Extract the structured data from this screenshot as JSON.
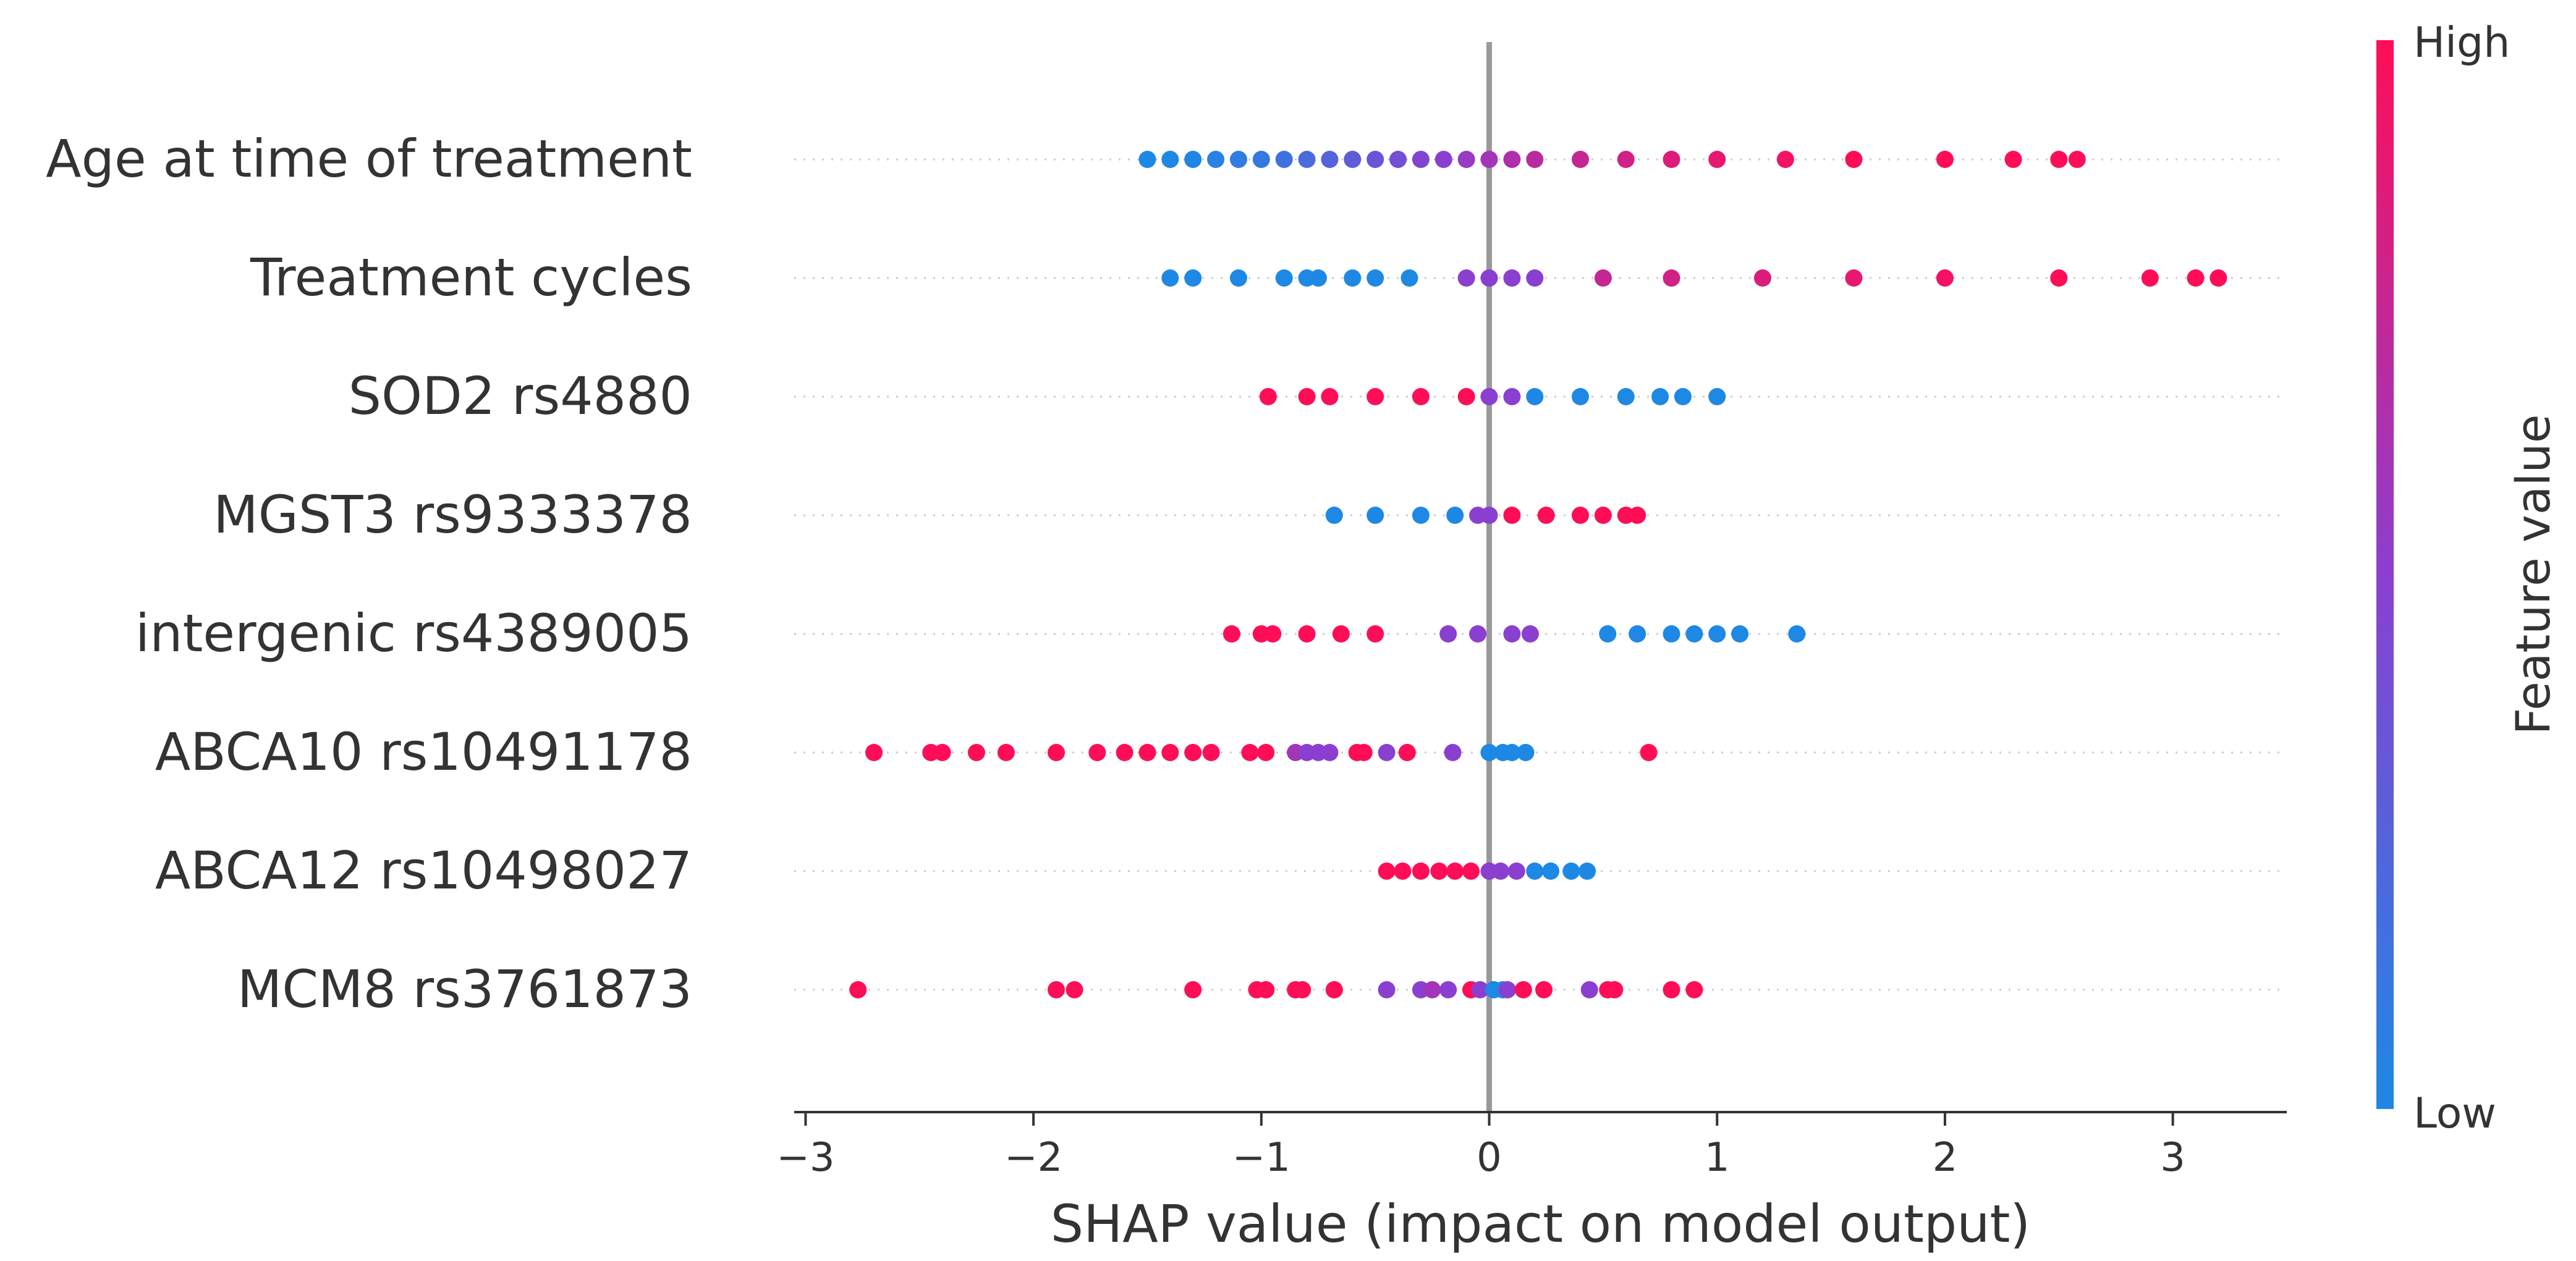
{
  "chart_data": {
    "type": "scatter",
    "subtype": "shap-beeswarm",
    "title": "",
    "xlabel": "SHAP value (impact on model output)",
    "ylabel": "",
    "xlim": [
      -3.05,
      3.5
    ],
    "x_ticks": [
      -3,
      -2,
      -1,
      0,
      1,
      2,
      3
    ],
    "x_tick_labels": [
      "−3",
      "−2",
      "−1",
      "0",
      "1",
      "2",
      "3"
    ],
    "colorbar": {
      "title": "Feature value",
      "high_label": "High",
      "low_label": "Low",
      "low_color": "#1e88e5",
      "mid_color": "#8b3fd0",
      "high_color": "#ff0d57"
    },
    "zero_line_color": "#999999",
    "features": [
      {
        "name": "Age at time of treatment",
        "points": [
          {
            "x": -1.5,
            "v": 0.0
          },
          {
            "x": -1.4,
            "v": 0.0
          },
          {
            "x": -1.3,
            "v": 0.02
          },
          {
            "x": -1.2,
            "v": 0.05
          },
          {
            "x": -1.1,
            "v": 0.08
          },
          {
            "x": -1.0,
            "v": 0.1
          },
          {
            "x": -0.9,
            "v": 0.15
          },
          {
            "x": -0.8,
            "v": 0.2
          },
          {
            "x": -0.7,
            "v": 0.25
          },
          {
            "x": -0.6,
            "v": 0.3
          },
          {
            "x": -0.5,
            "v": 0.35
          },
          {
            "x": -0.4,
            "v": 0.4
          },
          {
            "x": -0.3,
            "v": 0.45
          },
          {
            "x": -0.2,
            "v": 0.5
          },
          {
            "x": -0.1,
            "v": 0.55
          },
          {
            "x": 0.0,
            "v": 0.6
          },
          {
            "x": 0.1,
            "v": 0.65
          },
          {
            "x": 0.2,
            "v": 0.7
          },
          {
            "x": 0.4,
            "v": 0.75
          },
          {
            "x": 0.6,
            "v": 0.8
          },
          {
            "x": 0.8,
            "v": 0.85
          },
          {
            "x": 1.0,
            "v": 0.9
          },
          {
            "x": 1.3,
            "v": 0.95
          },
          {
            "x": 1.6,
            "v": 1.0
          },
          {
            "x": 2.0,
            "v": 1.0
          },
          {
            "x": 2.3,
            "v": 1.0
          },
          {
            "x": 2.5,
            "v": 1.0
          },
          {
            "x": 2.58,
            "v": 1.0
          }
        ]
      },
      {
        "name": "Treatment cycles",
        "points": [
          {
            "x": -1.4,
            "v": 0.0
          },
          {
            "x": -1.3,
            "v": 0.0
          },
          {
            "x": -1.1,
            "v": 0.0
          },
          {
            "x": -0.9,
            "v": 0.0
          },
          {
            "x": -0.8,
            "v": 0.0
          },
          {
            "x": -0.75,
            "v": 0.0
          },
          {
            "x": -0.6,
            "v": 0.0
          },
          {
            "x": -0.5,
            "v": 0.0
          },
          {
            "x": -0.35,
            "v": 0.0
          },
          {
            "x": -0.1,
            "v": 0.5
          },
          {
            "x": 0.0,
            "v": 0.5
          },
          {
            "x": 0.1,
            "v": 0.5
          },
          {
            "x": 0.2,
            "v": 0.5
          },
          {
            "x": 0.5,
            "v": 0.75
          },
          {
            "x": 0.8,
            "v": 0.8
          },
          {
            "x": 1.2,
            "v": 0.85
          },
          {
            "x": 1.6,
            "v": 0.9
          },
          {
            "x": 2.0,
            "v": 0.95
          },
          {
            "x": 2.5,
            "v": 1.0
          },
          {
            "x": 2.9,
            "v": 1.0
          },
          {
            "x": 3.1,
            "v": 1.0
          },
          {
            "x": 3.2,
            "v": 1.0
          }
        ]
      },
      {
        "name": "SOD2 rs4880",
        "points": [
          {
            "x": -0.97,
            "v": 1.0
          },
          {
            "x": -0.8,
            "v": 1.0
          },
          {
            "x": -0.7,
            "v": 1.0
          },
          {
            "x": -0.5,
            "v": 1.0
          },
          {
            "x": -0.3,
            "v": 1.0
          },
          {
            "x": -0.1,
            "v": 1.0
          },
          {
            "x": 0.0,
            "v": 0.5
          },
          {
            "x": 0.1,
            "v": 0.5
          },
          {
            "x": 0.2,
            "v": 0.0
          },
          {
            "x": 0.4,
            "v": 0.0
          },
          {
            "x": 0.6,
            "v": 0.0
          },
          {
            "x": 0.75,
            "v": 0.0
          },
          {
            "x": 0.85,
            "v": 0.0
          },
          {
            "x": 1.0,
            "v": 0.0
          }
        ]
      },
      {
        "name": "MGST3 rs9333378",
        "points": [
          {
            "x": -0.68,
            "v": 0.0
          },
          {
            "x": -0.5,
            "v": 0.0
          },
          {
            "x": -0.3,
            "v": 0.0
          },
          {
            "x": -0.15,
            "v": 0.0
          },
          {
            "x": -0.05,
            "v": 0.5
          },
          {
            "x": 0.0,
            "v": 0.5
          },
          {
            "x": 0.1,
            "v": 1.0
          },
          {
            "x": 0.25,
            "v": 1.0
          },
          {
            "x": 0.4,
            "v": 1.0
          },
          {
            "x": 0.5,
            "v": 1.0
          },
          {
            "x": 0.6,
            "v": 1.0
          },
          {
            "x": 0.65,
            "v": 1.0
          }
        ]
      },
      {
        "name": "intergenic rs4389005",
        "points": [
          {
            "x": -1.13,
            "v": 1.0
          },
          {
            "x": -1.0,
            "v": 1.0
          },
          {
            "x": -0.95,
            "v": 1.0
          },
          {
            "x": -0.8,
            "v": 1.0
          },
          {
            "x": -0.65,
            "v": 1.0
          },
          {
            "x": -0.5,
            "v": 1.0
          },
          {
            "x": -0.18,
            "v": 0.5
          },
          {
            "x": -0.05,
            "v": 0.5
          },
          {
            "x": 0.1,
            "v": 0.5
          },
          {
            "x": 0.18,
            "v": 0.5
          },
          {
            "x": 0.52,
            "v": 0.0
          },
          {
            "x": 0.65,
            "v": 0.0
          },
          {
            "x": 0.8,
            "v": 0.0
          },
          {
            "x": 0.9,
            "v": 0.0
          },
          {
            "x": 1.0,
            "v": 0.0
          },
          {
            "x": 1.1,
            "v": 0.0
          },
          {
            "x": 1.35,
            "v": 0.0
          }
        ]
      },
      {
        "name": "ABCA10 rs10491178",
        "points": [
          {
            "x": -2.7,
            "v": 1.0
          },
          {
            "x": -2.45,
            "v": 1.0
          },
          {
            "x": -2.4,
            "v": 1.0
          },
          {
            "x": -2.25,
            "v": 1.0
          },
          {
            "x": -2.12,
            "v": 1.0
          },
          {
            "x": -1.9,
            "v": 1.0
          },
          {
            "x": -1.72,
            "v": 1.0
          },
          {
            "x": -1.6,
            "v": 1.0
          },
          {
            "x": -1.5,
            "v": 1.0
          },
          {
            "x": -1.4,
            "v": 1.0
          },
          {
            "x": -1.3,
            "v": 1.0
          },
          {
            "x": -1.22,
            "v": 1.0
          },
          {
            "x": -1.05,
            "v": 1.0
          },
          {
            "x": -0.98,
            "v": 1.0
          },
          {
            "x": -0.85,
            "v": 0.6
          },
          {
            "x": -0.8,
            "v": 0.5
          },
          {
            "x": -0.75,
            "v": 0.5
          },
          {
            "x": -0.7,
            "v": 0.5
          },
          {
            "x": -0.58,
            "v": 1.0
          },
          {
            "x": -0.55,
            "v": 1.0
          },
          {
            "x": -0.45,
            "v": 0.5
          },
          {
            "x": -0.36,
            "v": 1.0
          },
          {
            "x": -0.16,
            "v": 0.5
          },
          {
            "x": 0.0,
            "v": 0.0
          },
          {
            "x": 0.06,
            "v": 0.0
          },
          {
            "x": 0.1,
            "v": 0.0
          },
          {
            "x": 0.16,
            "v": 0.0
          },
          {
            "x": 0.7,
            "v": 1.0
          }
        ]
      },
      {
        "name": "ABCA12 rs10498027",
        "points": [
          {
            "x": -0.45,
            "v": 1.0
          },
          {
            "x": -0.38,
            "v": 1.0
          },
          {
            "x": -0.3,
            "v": 1.0
          },
          {
            "x": -0.22,
            "v": 1.0
          },
          {
            "x": -0.15,
            "v": 1.0
          },
          {
            "x": -0.08,
            "v": 1.0
          },
          {
            "x": 0.0,
            "v": 0.5
          },
          {
            "x": 0.05,
            "v": 0.5
          },
          {
            "x": 0.12,
            "v": 0.5
          },
          {
            "x": 0.2,
            "v": 0.0
          },
          {
            "x": 0.27,
            "v": 0.0
          },
          {
            "x": 0.36,
            "v": 0.0
          },
          {
            "x": 0.43,
            "v": 0.0
          }
        ]
      },
      {
        "name": "MCM8 rs3761873",
        "points": [
          {
            "x": -2.77,
            "v": 1.0
          },
          {
            "x": -1.9,
            "v": 1.0
          },
          {
            "x": -1.82,
            "v": 1.0
          },
          {
            "x": -1.3,
            "v": 1.0
          },
          {
            "x": -1.02,
            "v": 1.0
          },
          {
            "x": -0.98,
            "v": 1.0
          },
          {
            "x": -0.85,
            "v": 1.0
          },
          {
            "x": -0.82,
            "v": 1.0
          },
          {
            "x": -0.68,
            "v": 1.0
          },
          {
            "x": -0.45,
            "v": 0.5
          },
          {
            "x": -0.3,
            "v": 0.5
          },
          {
            "x": -0.25,
            "v": 0.6
          },
          {
            "x": -0.18,
            "v": 0.5
          },
          {
            "x": -0.08,
            "v": 1.0
          },
          {
            "x": -0.04,
            "v": 0.5
          },
          {
            "x": 0.02,
            "v": 0.0
          },
          {
            "x": 0.06,
            "v": 0.0
          },
          {
            "x": 0.08,
            "v": 0.5
          },
          {
            "x": 0.15,
            "v": 1.0
          },
          {
            "x": 0.24,
            "v": 1.0
          },
          {
            "x": 0.44,
            "v": 0.5
          },
          {
            "x": 0.52,
            "v": 1.0
          },
          {
            "x": 0.55,
            "v": 1.0
          },
          {
            "x": 0.8,
            "v": 1.0
          },
          {
            "x": 0.9,
            "v": 1.0
          }
        ]
      }
    ]
  }
}
